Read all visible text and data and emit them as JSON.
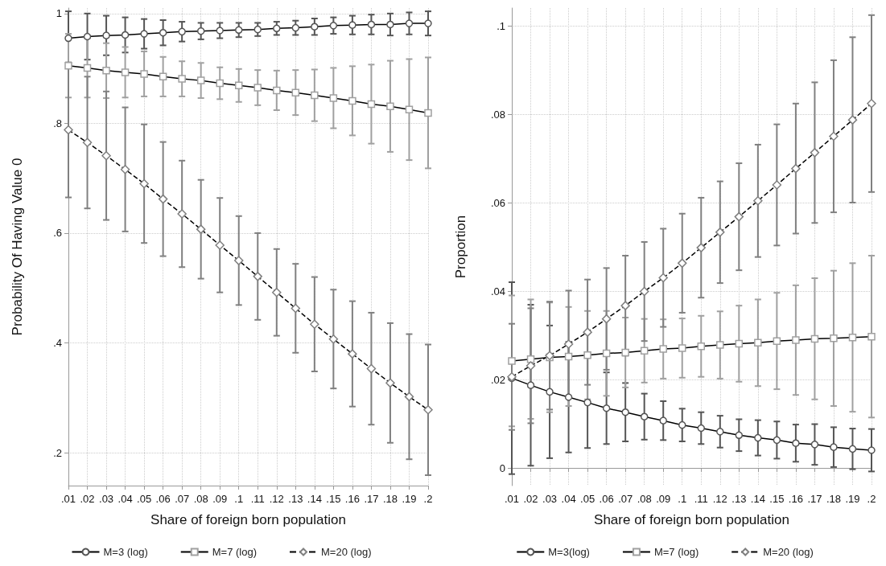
{
  "chart_data": [
    {
      "type": "line",
      "xlabel": "Share of foreign born population",
      "ylabel": "Probability Of Having Value 0",
      "categories": [
        ".01",
        ".02",
        ".03",
        ".04",
        ".05",
        ".06",
        ".07",
        ".08",
        ".09",
        ".1",
        ".11",
        ".12",
        ".13",
        ".14",
        ".15",
        ".16",
        ".17",
        ".18",
        ".19",
        ".2"
      ],
      "ylim": [
        0.14,
        1.01
      ],
      "yticks": [
        {
          "value": 0.2,
          "label": ".2"
        },
        {
          "value": 0.4,
          "label": ".4"
        },
        {
          "value": 0.6,
          "label": ".6"
        },
        {
          "value": 0.8,
          "label": ".8"
        },
        1
      ],
      "grid": true,
      "legend": "bottom",
      "series": [
        {
          "name": "M=3 (log)",
          "color": "#555555",
          "marker": "circle",
          "line_style": "solid",
          "values": [
            0.955,
            0.958,
            0.96,
            0.961,
            0.963,
            0.965,
            0.967,
            0.968,
            0.969,
            0.97,
            0.971,
            0.973,
            0.974,
            0.976,
            0.978,
            0.979,
            0.98,
            0.98,
            0.982,
            0.982
          ],
          "errors": [
            0.049,
            0.042,
            0.036,
            0.032,
            0.027,
            0.023,
            0.018,
            0.015,
            0.014,
            0.013,
            0.012,
            0.012,
            0.013,
            0.015,
            0.015,
            0.017,
            0.018,
            0.02,
            0.02,
            0.022
          ]
        },
        {
          "name": "M=7 (log)",
          "color": "#a0a0a0",
          "marker": "square",
          "line_style": "solid",
          "values": [
            0.905,
            0.901,
            0.896,
            0.893,
            0.89,
            0.885,
            0.881,
            0.878,
            0.873,
            0.869,
            0.865,
            0.86,
            0.856,
            0.851,
            0.846,
            0.841,
            0.835,
            0.831,
            0.825,
            0.819
          ],
          "errors": [
            0.058,
            0.054,
            0.05,
            0.046,
            0.041,
            0.036,
            0.032,
            0.032,
            0.029,
            0.03,
            0.032,
            0.036,
            0.041,
            0.047,
            0.055,
            0.063,
            0.072,
            0.083,
            0.092,
            0.101
          ]
        },
        {
          "name": "M=20 (log)",
          "color": "#808080",
          "marker": "diamond",
          "line_style": "dashed",
          "values": [
            0.788,
            0.765,
            0.741,
            0.716,
            0.69,
            0.662,
            0.635,
            0.607,
            0.578,
            0.55,
            0.521,
            0.492,
            0.463,
            0.434,
            0.407,
            0.38,
            0.353,
            0.327,
            0.302,
            0.278
          ],
          "errors": [
            0.123,
            0.12,
            0.117,
            0.113,
            0.108,
            0.104,
            0.097,
            0.09,
            0.086,
            0.081,
            0.079,
            0.079,
            0.081,
            0.086,
            0.09,
            0.096,
            0.102,
            0.109,
            0.114,
            0.119
          ]
        }
      ]
    },
    {
      "type": "line",
      "xlabel": "Share of foreign born population",
      "ylabel": "Proportion",
      "categories": [
        ".01",
        ".02",
        ".03",
        ".04",
        ".05",
        ".06",
        ".07",
        ".08",
        ".09",
        ".1",
        ".11",
        ".12",
        ".13",
        ".14",
        ".15",
        ".16",
        ".17",
        ".18",
        ".19",
        ".2"
      ],
      "ylim": [
        -0.004,
        0.104
      ],
      "yticks": [
        0,
        {
          "value": 0.02,
          "label": ".02"
        },
        {
          "value": 0.04,
          "label": ".04"
        },
        {
          "value": 0.06,
          "label": ".06"
        },
        {
          "value": 0.08,
          "label": ".08"
        },
        {
          "value": 0.1,
          "label": ".1"
        }
      ],
      "grid": true,
      "legend": "bottom",
      "series": [
        {
          "name": "M=3(log)",
          "color": "#555555",
          "marker": "circle",
          "line_style": "solid",
          "values": [
            0.0203,
            0.0187,
            0.0172,
            0.016,
            0.0148,
            0.0135,
            0.0126,
            0.0116,
            0.0107,
            0.0097,
            0.009,
            0.0082,
            0.0074,
            0.0068,
            0.0063,
            0.0056,
            0.0053,
            0.0047,
            0.0043,
            0.004
          ],
          "errors": [
            0.0217,
            0.0182,
            0.015,
            0.0125,
            0.0103,
            0.0081,
            0.0066,
            0.0052,
            0.0044,
            0.0037,
            0.0036,
            0.0036,
            0.0036,
            0.004,
            0.0042,
            0.0042,
            0.0046,
            0.0045,
            0.0046,
            0.0048
          ]
        },
        {
          "name": "M=7 (log)",
          "color": "#a0a0a0",
          "marker": "square",
          "line_style": "solid",
          "values": [
            0.0242,
            0.0246,
            0.025,
            0.0252,
            0.0255,
            0.0259,
            0.0261,
            0.0265,
            0.0269,
            0.0271,
            0.0275,
            0.0278,
            0.0281,
            0.0283,
            0.0287,
            0.0289,
            0.0292,
            0.0293,
            0.0295,
            0.0297
          ],
          "errors": [
            0.0148,
            0.0135,
            0.0124,
            0.0112,
            0.01,
            0.0096,
            0.0079,
            0.0072,
            0.0067,
            0.0067,
            0.0069,
            0.0076,
            0.0086,
            0.0098,
            0.0109,
            0.0124,
            0.0137,
            0.0153,
            0.0168,
            0.0183
          ]
        },
        {
          "name": "M=20 (log)",
          "color": "#808080",
          "marker": "diamond",
          "line_style": "dashed",
          "values": [
            0.0206,
            0.0231,
            0.0254,
            0.028,
            0.0307,
            0.0337,
            0.0367,
            0.0399,
            0.043,
            0.0463,
            0.0498,
            0.0533,
            0.0568,
            0.0604,
            0.064,
            0.0677,
            0.0713,
            0.075,
            0.0787,
            0.0824
          ],
          "errors": [
            0.012,
            0.013,
            0.0122,
            0.0121,
            0.0119,
            0.0115,
            0.0113,
            0.0112,
            0.0111,
            0.0112,
            0.0113,
            0.0115,
            0.0121,
            0.0127,
            0.0137,
            0.0147,
            0.0159,
            0.0172,
            0.0187,
            0.02
          ]
        }
      ]
    }
  ]
}
